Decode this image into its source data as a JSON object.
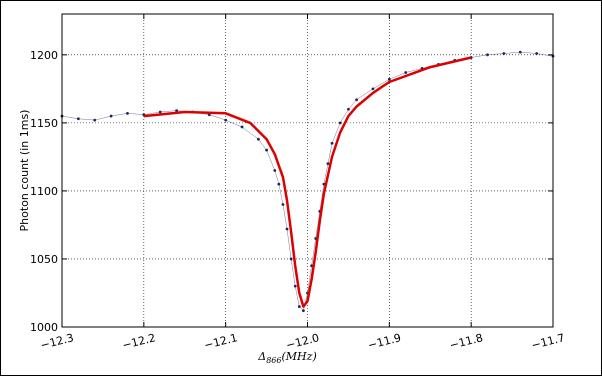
{
  "chart_data": {
    "type": "scatter",
    "title": "",
    "xlabel": "Δ866(MHz)",
    "xlabel_parts": {
      "symbol": "Δ",
      "sub": "866",
      "unit": "(MHz)"
    },
    "ylabel": "Photon count (in 1ms)",
    "xlim": [
      -12.3,
      -11.7
    ],
    "ylim": [
      1000,
      1230
    ],
    "xticks": [
      -12.3,
      -12.2,
      -12.1,
      -12.0,
      -11.9,
      -11.8,
      -11.7
    ],
    "xtick_labels": [
      "−12.3",
      "−12.2",
      "−12.1",
      "−12.0",
      "−11.9",
      "−11.8",
      "−11.7"
    ],
    "yticks": [
      1000,
      1050,
      1100,
      1150,
      1200
    ],
    "ytick_labels": [
      "1000",
      "1050",
      "1100",
      "1150",
      "1200"
    ],
    "grid": true,
    "series": [
      {
        "kind": "data",
        "color": "#1a2a5a",
        "x": [
          -12.3,
          -12.28,
          -12.26,
          -12.24,
          -12.22,
          -12.2,
          -12.18,
          -12.16,
          -12.14,
          -12.12,
          -12.1,
          -12.08,
          -12.06,
          -12.05,
          -12.04,
          -12.035,
          -12.03,
          -12.025,
          -12.02,
          -12.015,
          -12.01,
          -12.005,
          -12.0,
          -11.995,
          -11.99,
          -11.985,
          -11.98,
          -11.975,
          -11.97,
          -11.96,
          -11.95,
          -11.94,
          -11.92,
          -11.9,
          -11.88,
          -11.86,
          -11.84,
          -11.82,
          -11.8,
          -11.78,
          -11.76,
          -11.74,
          -11.72,
          -11.7
        ],
        "y": [
          1155,
          1153,
          1152,
          1155,
          1157,
          1156,
          1158,
          1159,
          1158,
          1156,
          1152,
          1147,
          1138,
          1130,
          1115,
          1105,
          1090,
          1072,
          1050,
          1030,
          1015,
          1012,
          1025,
          1045,
          1065,
          1085,
          1105,
          1120,
          1135,
          1150,
          1160,
          1167,
          1175,
          1182,
          1187,
          1190,
          1193,
          1196,
          1198,
          1200,
          1201,
          1202,
          1201,
          1199
        ]
      },
      {
        "kind": "fit",
        "color": "#dd0000",
        "x": [
          -12.2,
          -12.15,
          -12.1,
          -12.07,
          -12.05,
          -12.04,
          -12.03,
          -12.025,
          -12.02,
          -12.015,
          -12.01,
          -12.005,
          -12.0,
          -11.995,
          -11.99,
          -11.985,
          -11.98,
          -11.97,
          -11.96,
          -11.95,
          -11.94,
          -11.92,
          -11.9,
          -11.85,
          -11.8
        ],
        "y": [
          1155,
          1158,
          1157,
          1150,
          1138,
          1127,
          1110,
          1093,
          1070,
          1045,
          1025,
          1015,
          1019,
          1035,
          1055,
          1078,
          1098,
          1125,
          1143,
          1155,
          1162,
          1172,
          1180,
          1191,
          1198
        ]
      }
    ]
  }
}
